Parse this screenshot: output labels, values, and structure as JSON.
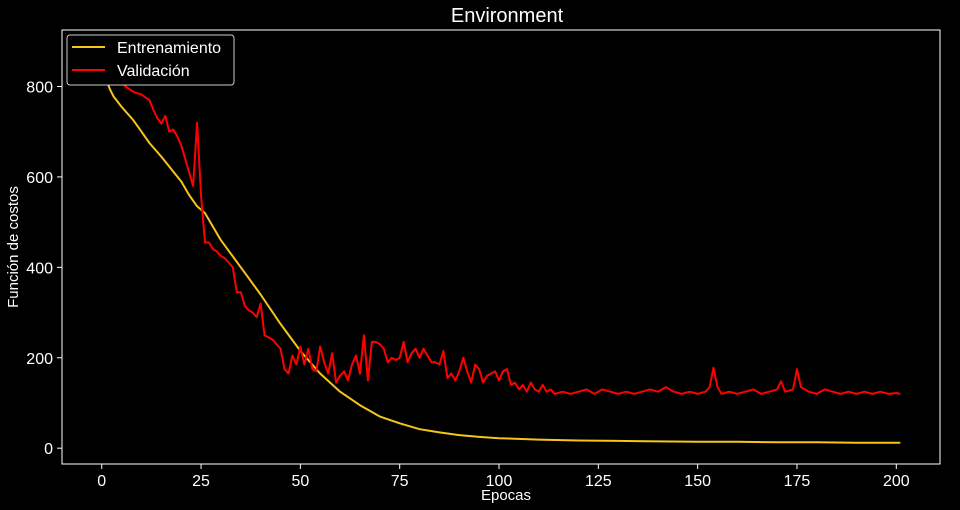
{
  "chart_data": {
    "type": "line",
    "title": "Environment",
    "xlabel": "Epocas",
    "ylabel": "Función de costos",
    "xlim": [
      -10,
      211
    ],
    "ylim": [
      -35,
      925
    ],
    "xticks": [
      0,
      25,
      50,
      75,
      100,
      125,
      150,
      175,
      200
    ],
    "yticks": [
      0,
      200,
      400,
      600,
      800
    ],
    "grid": false,
    "legend": "top-left",
    "background": "#000000",
    "foreground": "#ffffff",
    "series": [
      {
        "name": "Entrenamiento",
        "color": "#f5c518",
        "points": [
          [
            0,
            880
          ],
          [
            1,
            820
          ],
          [
            2,
            795
          ],
          [
            3,
            778
          ],
          [
            5,
            755
          ],
          [
            8,
            725
          ],
          [
            10,
            700
          ],
          [
            12,
            675
          ],
          [
            15,
            645
          ],
          [
            18,
            612
          ],
          [
            20,
            590
          ],
          [
            22,
            560
          ],
          [
            24,
            535
          ],
          [
            26,
            520
          ],
          [
            28,
            490
          ],
          [
            30,
            460
          ],
          [
            35,
            400
          ],
          [
            40,
            340
          ],
          [
            45,
            275
          ],
          [
            50,
            215
          ],
          [
            55,
            165
          ],
          [
            60,
            125
          ],
          [
            65,
            95
          ],
          [
            70,
            70
          ],
          [
            75,
            55
          ],
          [
            80,
            42
          ],
          [
            85,
            35
          ],
          [
            90,
            29
          ],
          [
            95,
            25
          ],
          [
            100,
            22
          ],
          [
            110,
            19
          ],
          [
            120,
            17
          ],
          [
            130,
            16
          ],
          [
            140,
            15
          ],
          [
            150,
            14
          ],
          [
            160,
            14
          ],
          [
            170,
            13
          ],
          [
            180,
            13
          ],
          [
            190,
            12
          ],
          [
            201,
            12
          ]
        ]
      },
      {
        "name": "Validación",
        "color": "#ff0000",
        "points": [
          [
            0,
            910
          ],
          [
            2,
            850
          ],
          [
            4,
            815
          ],
          [
            6,
            800
          ],
          [
            8,
            788
          ],
          [
            10,
            782
          ],
          [
            12,
            770
          ],
          [
            13,
            748
          ],
          [
            14,
            730
          ],
          [
            15,
            718
          ],
          [
            16,
            735
          ],
          [
            17,
            700
          ],
          [
            18,
            705
          ],
          [
            19,
            690
          ],
          [
            20,
            670
          ],
          [
            21,
            640
          ],
          [
            22,
            610
          ],
          [
            23,
            580
          ],
          [
            24,
            720
          ],
          [
            25,
            560
          ],
          [
            26,
            455
          ],
          [
            27,
            455
          ],
          [
            28,
            440
          ],
          [
            29,
            435
          ],
          [
            30,
            425
          ],
          [
            31,
            420
          ],
          [
            32,
            410
          ],
          [
            33,
            400
          ],
          [
            34,
            345
          ],
          [
            35,
            345
          ],
          [
            36,
            315
          ],
          [
            37,
            305
          ],
          [
            38,
            300
          ],
          [
            39,
            290
          ],
          [
            40,
            320
          ],
          [
            41,
            250
          ],
          [
            42,
            245
          ],
          [
            43,
            240
          ],
          [
            44,
            230
          ],
          [
            45,
            220
          ],
          [
            46,
            175
          ],
          [
            47,
            165
          ],
          [
            48,
            205
          ],
          [
            49,
            185
          ],
          [
            50,
            225
          ],
          [
            51,
            185
          ],
          [
            52,
            220
          ],
          [
            53,
            175
          ],
          [
            54,
            170
          ],
          [
            55,
            225
          ],
          [
            56,
            190
          ],
          [
            57,
            165
          ],
          [
            58,
            210
          ],
          [
            59,
            145
          ],
          [
            60,
            160
          ],
          [
            61,
            170
          ],
          [
            62,
            150
          ],
          [
            63,
            185
          ],
          [
            64,
            205
          ],
          [
            65,
            165
          ],
          [
            66,
            250
          ],
          [
            67,
            150
          ],
          [
            68,
            235
          ],
          [
            69,
            235
          ],
          [
            70,
            230
          ],
          [
            71,
            220
          ],
          [
            72,
            190
          ],
          [
            73,
            200
          ],
          [
            74,
            195
          ],
          [
            75,
            200
          ],
          [
            76,
            235
          ],
          [
            77,
            190
          ],
          [
            78,
            210
          ],
          [
            79,
            220
          ],
          [
            80,
            200
          ],
          [
            81,
            220
          ],
          [
            82,
            205
          ],
          [
            83,
            190
          ],
          [
            84,
            190
          ],
          [
            85,
            185
          ],
          [
            86,
            215
          ],
          [
            87,
            155
          ],
          [
            88,
            165
          ],
          [
            89,
            150
          ],
          [
            90,
            170
          ],
          [
            91,
            200
          ],
          [
            92,
            170
          ],
          [
            93,
            145
          ],
          [
            94,
            185
          ],
          [
            95,
            175
          ],
          [
            96,
            145
          ],
          [
            97,
            160
          ],
          [
            98,
            165
          ],
          [
            99,
            170
          ],
          [
            100,
            150
          ],
          [
            101,
            170
          ],
          [
            102,
            175
          ],
          [
            103,
            140
          ],
          [
            104,
            145
          ],
          [
            105,
            130
          ],
          [
            106,
            140
          ],
          [
            107,
            125
          ],
          [
            108,
            145
          ],
          [
            109,
            130
          ],
          [
            110,
            125
          ],
          [
            111,
            140
          ],
          [
            112,
            125
          ],
          [
            113,
            130
          ],
          [
            114,
            120
          ],
          [
            116,
            125
          ],
          [
            118,
            120
          ],
          [
            120,
            125
          ],
          [
            122,
            130
          ],
          [
            124,
            120
          ],
          [
            126,
            130
          ],
          [
            128,
            125
          ],
          [
            130,
            120
          ],
          [
            132,
            125
          ],
          [
            134,
            120
          ],
          [
            136,
            125
          ],
          [
            138,
            130
          ],
          [
            140,
            125
          ],
          [
            142,
            135
          ],
          [
            144,
            125
          ],
          [
            146,
            120
          ],
          [
            148,
            125
          ],
          [
            150,
            120
          ],
          [
            152,
            125
          ],
          [
            153,
            135
          ],
          [
            154,
            178
          ],
          [
            155,
            135
          ],
          [
            156,
            120
          ],
          [
            158,
            125
          ],
          [
            160,
            120
          ],
          [
            162,
            125
          ],
          [
            164,
            130
          ],
          [
            166,
            120
          ],
          [
            168,
            125
          ],
          [
            170,
            130
          ],
          [
            171,
            148
          ],
          [
            172,
            125
          ],
          [
            174,
            130
          ],
          [
            175,
            175
          ],
          [
            176,
            135
          ],
          [
            178,
            125
          ],
          [
            180,
            120
          ],
          [
            182,
            130
          ],
          [
            184,
            125
          ],
          [
            186,
            120
          ],
          [
            188,
            125
          ],
          [
            190,
            120
          ],
          [
            192,
            125
          ],
          [
            194,
            120
          ],
          [
            196,
            125
          ],
          [
            198,
            120
          ],
          [
            200,
            122
          ],
          [
            201,
            120
          ]
        ]
      }
    ]
  }
}
